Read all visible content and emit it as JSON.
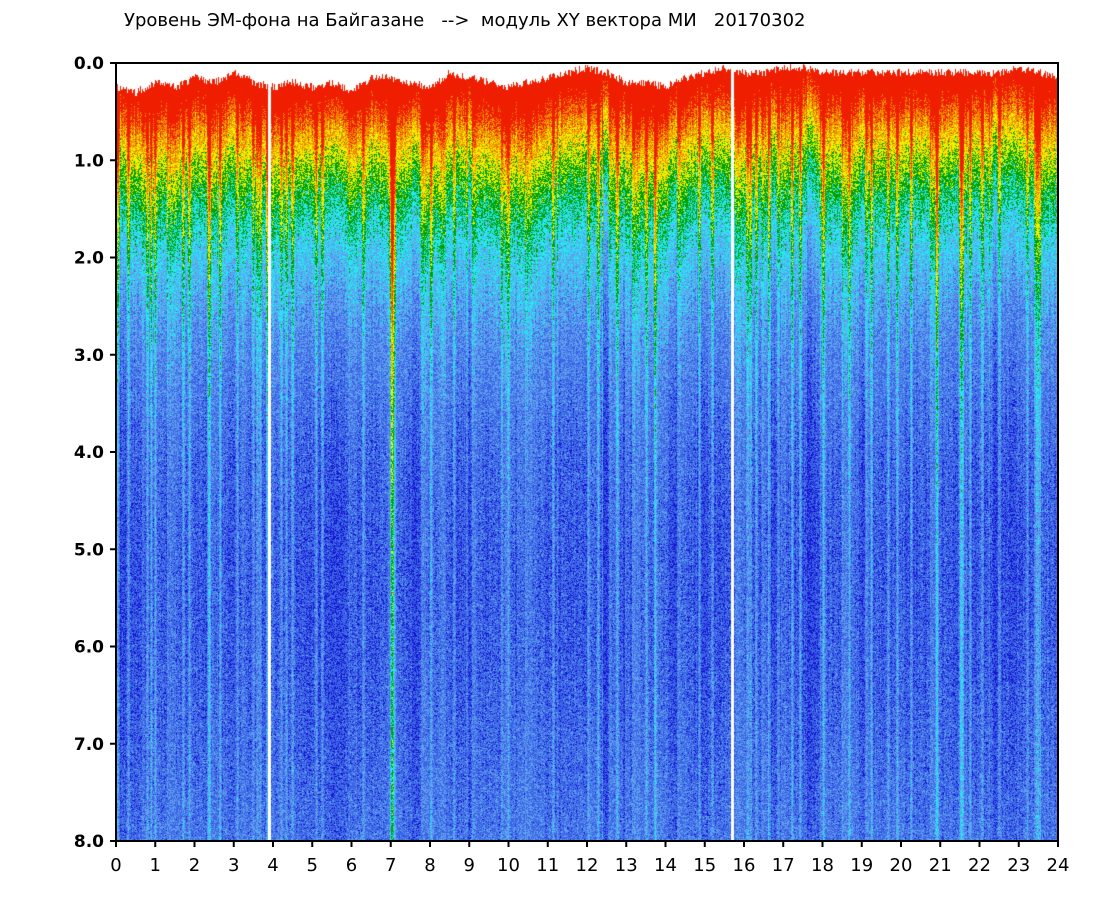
{
  "chart_data": {
    "type": "heatmap",
    "title": "Уровень ЭМ-фона на Байгазане   -->  модуль XY вектора МИ   20170302",
    "xlabel": "",
    "ylabel": "",
    "xlim": [
      0,
      24
    ],
    "ylim": [
      8.0,
      0.0
    ],
    "x_ticks": [
      "0",
      "1",
      "2",
      "3",
      "4",
      "5",
      "6",
      "7",
      "8",
      "9",
      "10",
      "11",
      "12",
      "13",
      "14",
      "15",
      "16",
      "17",
      "18",
      "19",
      "20",
      "21",
      "22",
      "23",
      "24"
    ],
    "y_ticks": [
      "0.0",
      "1.0",
      "2.0",
      "3.0",
      "4.0",
      "5.0",
      "6.0",
      "7.0",
      "8.0"
    ],
    "colormap": [
      "#1414d2",
      "#3c64e6",
      "#5fa0ee",
      "#28e6f0",
      "#00a000",
      "#f0f000",
      "#f08c00",
      "#f01e00"
    ],
    "background": "#ffffff",
    "grid": false,
    "legend": "none",
    "upper_envelope": [
      [
        0.0,
        0.25
      ],
      [
        0.5,
        0.3
      ],
      [
        1.0,
        0.2
      ],
      [
        1.5,
        0.25
      ],
      [
        2.0,
        0.15
      ],
      [
        2.5,
        0.2
      ],
      [
        3.0,
        0.1
      ],
      [
        3.5,
        0.2
      ],
      [
        4.0,
        0.25
      ],
      [
        4.5,
        0.2
      ],
      [
        5.0,
        0.25
      ],
      [
        5.5,
        0.2
      ],
      [
        6.0,
        0.3
      ],
      [
        6.5,
        0.15
      ],
      [
        7.0,
        0.15
      ],
      [
        7.5,
        0.2
      ],
      [
        8.0,
        0.25
      ],
      [
        8.5,
        0.1
      ],
      [
        9.0,
        0.15
      ],
      [
        9.5,
        0.2
      ],
      [
        10.0,
        0.25
      ],
      [
        10.5,
        0.2
      ],
      [
        11.0,
        0.15
      ],
      [
        11.5,
        0.1
      ],
      [
        12.0,
        0.05
      ],
      [
        12.5,
        0.1
      ],
      [
        13.0,
        0.2
      ],
      [
        13.5,
        0.2
      ],
      [
        14.0,
        0.25
      ],
      [
        14.5,
        0.15
      ],
      [
        15.0,
        0.1
      ],
      [
        15.5,
        0.05
      ],
      [
        16.0,
        0.1
      ],
      [
        16.5,
        0.1
      ],
      [
        17.0,
        0.05
      ],
      [
        17.5,
        0.05
      ],
      [
        18.0,
        0.1
      ],
      [
        18.5,
        0.1
      ],
      [
        19.0,
        0.1
      ],
      [
        19.5,
        0.1
      ],
      [
        20.0,
        0.1
      ],
      [
        20.5,
        0.1
      ],
      [
        21.0,
        0.1
      ],
      [
        21.5,
        0.1
      ],
      [
        22.0,
        0.1
      ],
      [
        22.5,
        0.1
      ],
      [
        23.0,
        0.05
      ],
      [
        23.5,
        0.1
      ],
      [
        24.0,
        0.15
      ]
    ],
    "gaps_x": [
      3.9,
      15.7
    ]
  }
}
